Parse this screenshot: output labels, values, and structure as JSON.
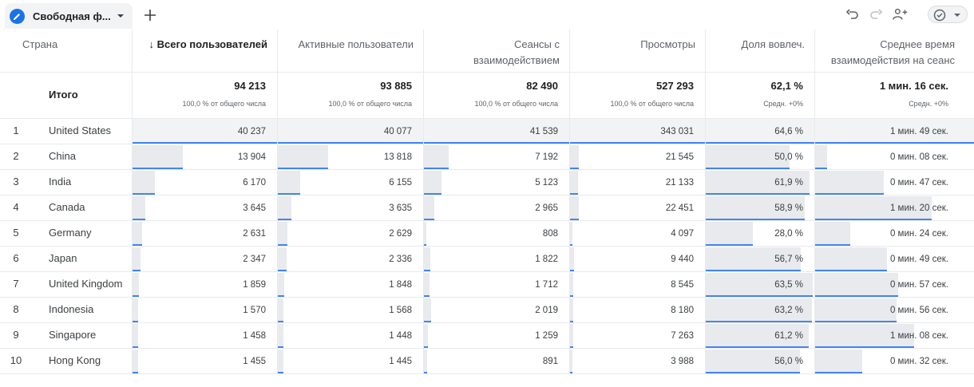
{
  "tab": {
    "label": "Свободная ф...",
    "add_label": "+"
  },
  "toolbar": {
    "undo_icon": "undo-icon",
    "redo_icon": "redo-icon",
    "share_icon": "share-people-icon",
    "status_icon": "check-circle-icon"
  },
  "headers": {
    "country": "Страна",
    "users": "↓ Всего пользователей",
    "active": "Активные пользователи",
    "sessions_l1": "Сеансы с",
    "sessions_l2": "взаимодействием",
    "views": "Просмотры",
    "engagement": "Доля вовлеч.",
    "avg_time_l1": "Среднее время",
    "avg_time_l2": "взаимодействия на сеанс"
  },
  "totals": {
    "label": "Итого",
    "users": "94 213",
    "users_sub": "100,0 % от общего числа",
    "active": "93 885",
    "active_sub": "100,0 % от общего числа",
    "sessions": "82 490",
    "sessions_sub": "100,0 % от общего числа",
    "views": "527 293",
    "views_sub": "100,0 % от общего числа",
    "engagement": "62,1 %",
    "engagement_sub": "Средн. +0%",
    "avg_time": "1 мин. 16 сек.",
    "avg_time_sub": "Средн. +0%"
  },
  "rows": [
    {
      "n": "1",
      "country": "United States",
      "users": "40 237",
      "active": "40 077",
      "sessions": "41 539",
      "views": "343 031",
      "engagement": "64,6 %",
      "avg_time": "1 мин. 49 сек.",
      "f": {
        "users": 1.0,
        "active": 1.0,
        "sessions": 1.0,
        "views": 1.0,
        "engagement": 1.0,
        "avg_time": 1.0
      }
    },
    {
      "n": "2",
      "country": "China",
      "users": "13 904",
      "active": "13 818",
      "sessions": "7 192",
      "views": "21 545",
      "engagement": "50,0 %",
      "avg_time": "0 мин. 08 сек.",
      "f": {
        "users": 0.346,
        "active": 0.345,
        "sessions": 0.173,
        "views": 0.063,
        "engagement": 0.774,
        "avg_time": 0.073
      }
    },
    {
      "n": "3",
      "country": "India",
      "users": "6 170",
      "active": "6 155",
      "sessions": "5 123",
      "views": "21 133",
      "engagement": "61,9 %",
      "avg_time": "0 мин. 47 сек.",
      "f": {
        "users": 0.153,
        "active": 0.154,
        "sessions": 0.123,
        "views": 0.062,
        "engagement": 0.958,
        "avg_time": 0.431
      }
    },
    {
      "n": "4",
      "country": "Canada",
      "users": "3 645",
      "active": "3 635",
      "sessions": "2 965",
      "views": "22 451",
      "engagement": "58,9 %",
      "avg_time": "1 мин. 20 сек.",
      "f": {
        "users": 0.091,
        "active": 0.091,
        "sessions": 0.071,
        "views": 0.065,
        "engagement": 0.912,
        "avg_time": 0.734
      }
    },
    {
      "n": "5",
      "country": "Germany",
      "users": "2 631",
      "active": "2 629",
      "sessions": "808",
      "views": "4 097",
      "engagement": "28,0 %",
      "avg_time": "0 мин. 24 сек.",
      "f": {
        "users": 0.065,
        "active": 0.066,
        "sessions": 0.019,
        "views": 0.012,
        "engagement": 0.433,
        "avg_time": 0.22
      }
    },
    {
      "n": "6",
      "country": "Japan",
      "users": "2 347",
      "active": "2 336",
      "sessions": "1 822",
      "views": "9 440",
      "engagement": "56,7 %",
      "avg_time": "0 мин. 49 сек.",
      "f": {
        "users": 0.058,
        "active": 0.058,
        "sessions": 0.044,
        "views": 0.028,
        "engagement": 0.878,
        "avg_time": 0.45
      }
    },
    {
      "n": "7",
      "country": "United Kingdom",
      "users": "1 859",
      "active": "1 848",
      "sessions": "1 712",
      "views": "8 545",
      "engagement": "63,5 %",
      "avg_time": "0 мин. 57 сек.",
      "f": {
        "users": 0.046,
        "active": 0.046,
        "sessions": 0.041,
        "views": 0.025,
        "engagement": 0.983,
        "avg_time": 0.523
      }
    },
    {
      "n": "8",
      "country": "Indonesia",
      "users": "1 570",
      "active": "1 568",
      "sessions": "2 019",
      "views": "8 180",
      "engagement": "63,2 %",
      "avg_time": "0 мин. 56 сек.",
      "f": {
        "users": 0.039,
        "active": 0.039,
        "sessions": 0.049,
        "views": 0.024,
        "engagement": 0.978,
        "avg_time": 0.514
      }
    },
    {
      "n": "9",
      "country": "Singapore",
      "users": "1 458",
      "active": "1 448",
      "sessions": "1 259",
      "views": "7 263",
      "engagement": "61,2 %",
      "avg_time": "1 мин. 08 сек.",
      "f": {
        "users": 0.036,
        "active": 0.036,
        "sessions": 0.03,
        "views": 0.021,
        "engagement": 0.947,
        "avg_time": 0.624
      }
    },
    {
      "n": "10",
      "country": "Hong Kong",
      "users": "1 455",
      "active": "1 445",
      "sessions": "891",
      "views": "3 988",
      "engagement": "56,0 %",
      "avg_time": "0 мин. 32 сек.",
      "f": {
        "users": 0.036,
        "active": 0.036,
        "sessions": 0.021,
        "views": 0.012,
        "engagement": 0.867,
        "avg_time": 0.294
      }
    }
  ],
  "colors": {
    "bar_fill": "#e8eaed",
    "bar_line": "#4285f4",
    "accent": "#1a73e8"
  }
}
